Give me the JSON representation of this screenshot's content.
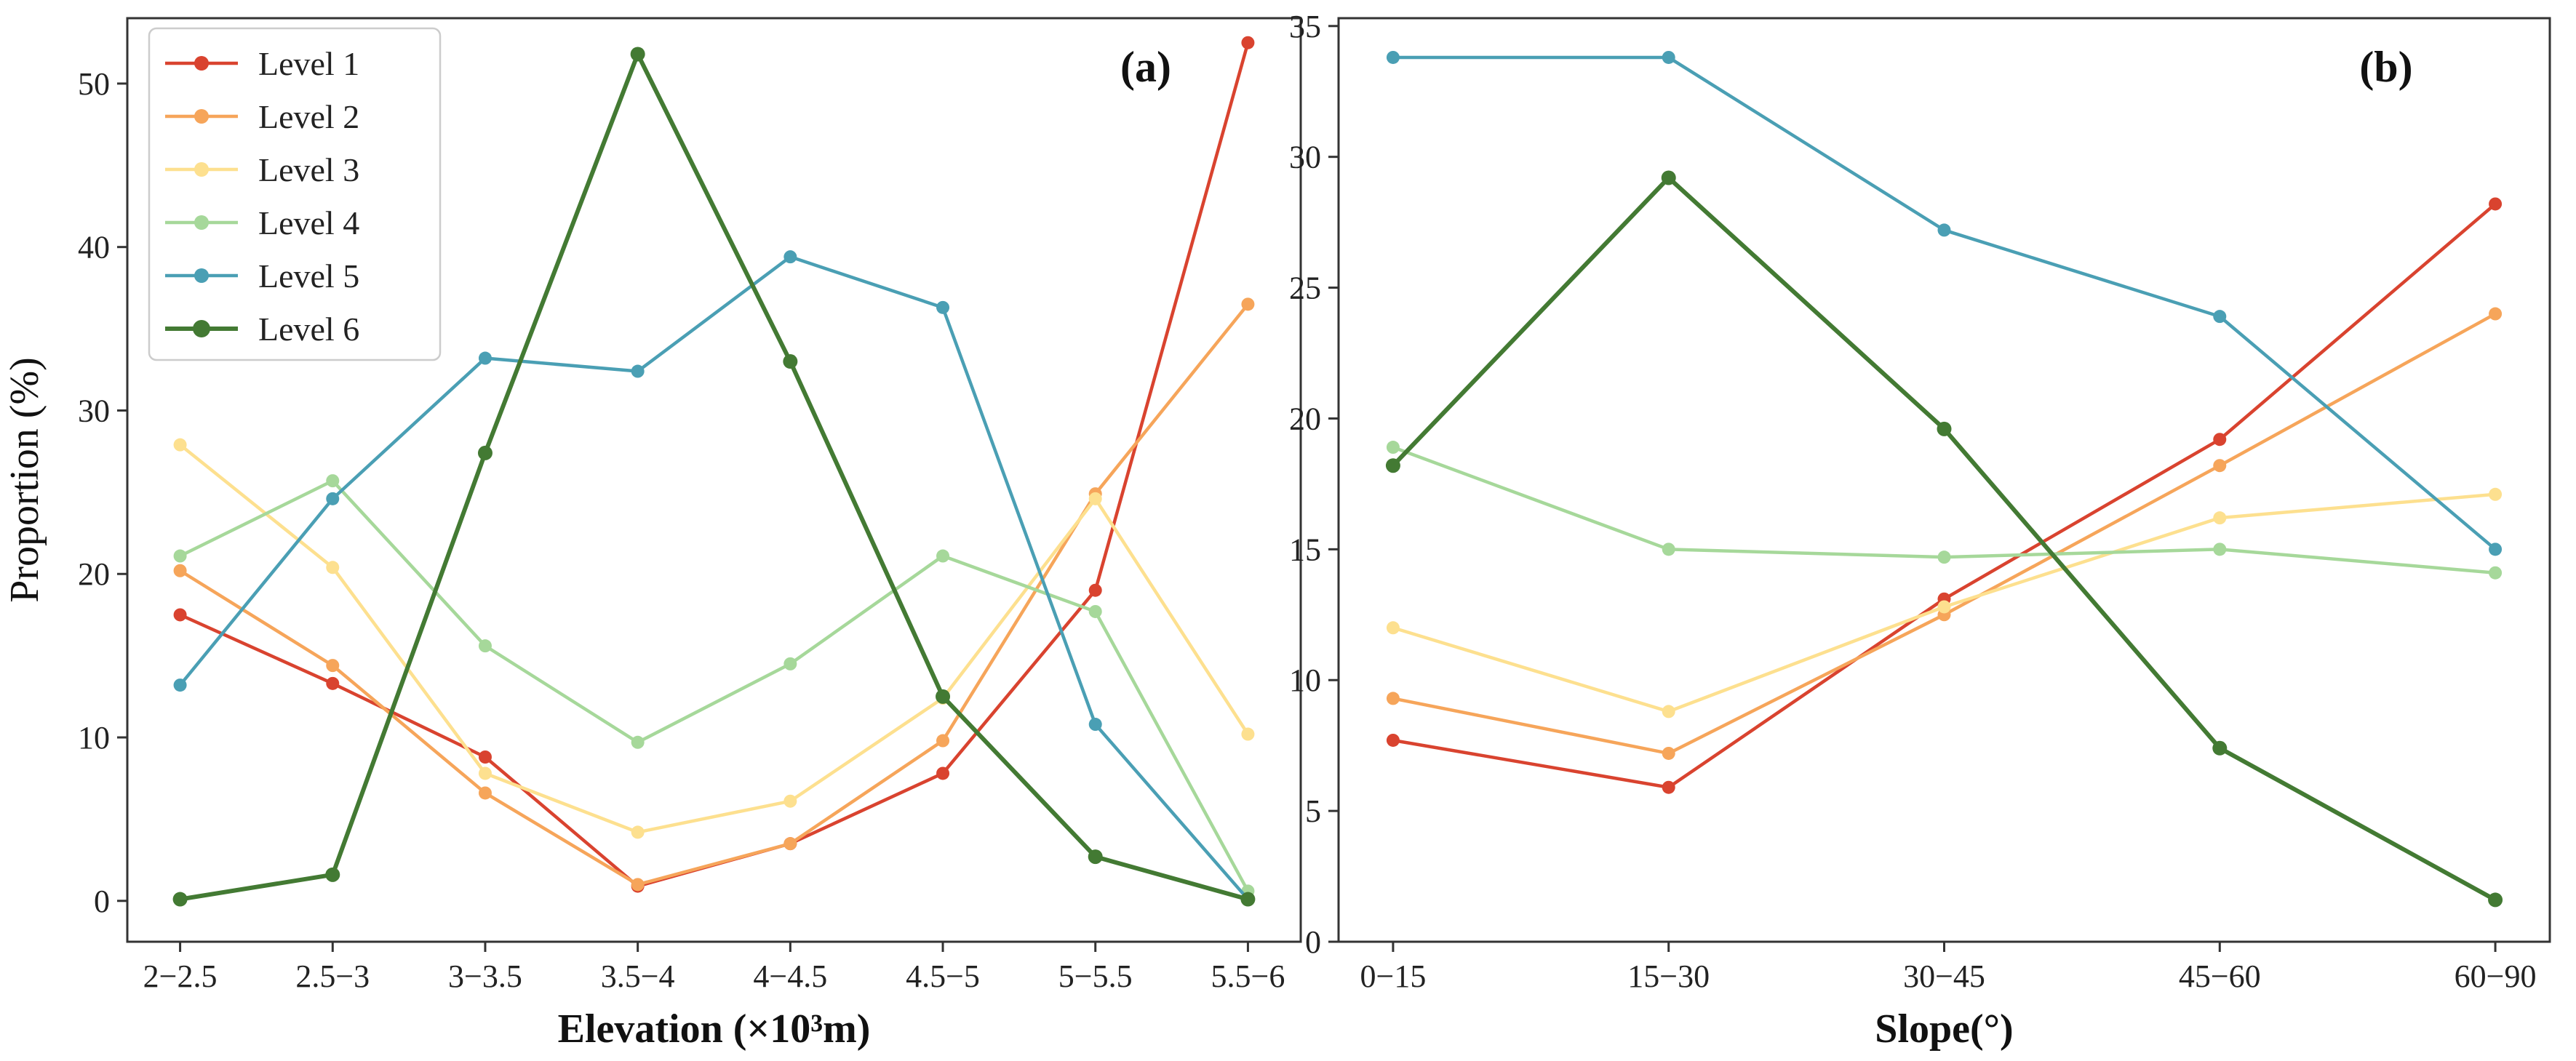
{
  "legend": {
    "entries": [
      "Level 1",
      "Level 2",
      "Level 3",
      "Level 4",
      "Level 5",
      "Level 6"
    ]
  },
  "colors": {
    "Level 1": "#d9432f",
    "Level 2": "#f6a55a",
    "Level 3": "#fde08f",
    "Level 4": "#a6d89a",
    "Level 5": "#4a9fb4",
    "Level 6": "#437a33"
  },
  "chart_data": [
    {
      "type": "line",
      "panel": "(a)",
      "xlabel": "Elevation (×10³m)",
      "ylabel": "Proportion (%)",
      "categories": [
        "2−2.5",
        "2.5−3",
        "3−3.5",
        "3.5−4",
        "4−4.5",
        "4.5−5",
        "5−5.5",
        "5.5−6"
      ],
      "ylim": [
        -2.5,
        54
      ],
      "yticks": [
        0,
        10,
        20,
        30,
        40,
        50
      ],
      "legend_position": "upper-left",
      "series": [
        {
          "name": "Level 1",
          "values": [
            17.5,
            13.3,
            8.8,
            0.9,
            3.5,
            7.8,
            19.0,
            52.5
          ]
        },
        {
          "name": "Level 2",
          "values": [
            20.2,
            14.4,
            6.6,
            1.0,
            3.5,
            9.8,
            24.9,
            36.5
          ]
        },
        {
          "name": "Level 3",
          "values": [
            27.9,
            20.4,
            7.8,
            4.2,
            6.1,
            12.4,
            24.6,
            10.2
          ]
        },
        {
          "name": "Level 4",
          "values": [
            21.1,
            25.7,
            15.6,
            9.7,
            14.5,
            21.1,
            17.7,
            0.6
          ]
        },
        {
          "name": "Level 5",
          "values": [
            13.2,
            24.6,
            33.2,
            32.4,
            39.4,
            36.3,
            10.8,
            0.1
          ]
        },
        {
          "name": "Level 6",
          "values": [
            0.1,
            1.6,
            27.4,
            51.8,
            33.0,
            12.5,
            2.7,
            0.1
          ]
        }
      ]
    },
    {
      "type": "line",
      "panel": "(b)",
      "xlabel": "Slope(°)",
      "ylabel": "",
      "categories": [
        "0−15",
        "15−30",
        "30−45",
        "45−60",
        "60−90"
      ],
      "ylim": [
        0,
        35.3
      ],
      "yticks": [
        0,
        5,
        10,
        15,
        20,
        25,
        30,
        35
      ],
      "series": [
        {
          "name": "Level 1",
          "values": [
            7.7,
            5.9,
            13.1,
            19.2,
            28.2
          ]
        },
        {
          "name": "Level 2",
          "values": [
            9.3,
            7.2,
            12.5,
            18.2,
            24.0
          ]
        },
        {
          "name": "Level 3",
          "values": [
            12.0,
            8.8,
            12.8,
            16.2,
            17.1
          ]
        },
        {
          "name": "Level 4",
          "values": [
            18.9,
            15.0,
            14.7,
            15.0,
            14.1
          ]
        },
        {
          "name": "Level 5",
          "values": [
            33.8,
            33.8,
            27.2,
            23.9,
            15.0
          ]
        },
        {
          "name": "Level 6",
          "values": [
            18.2,
            29.2,
            19.6,
            7.4,
            1.6
          ]
        }
      ]
    }
  ]
}
